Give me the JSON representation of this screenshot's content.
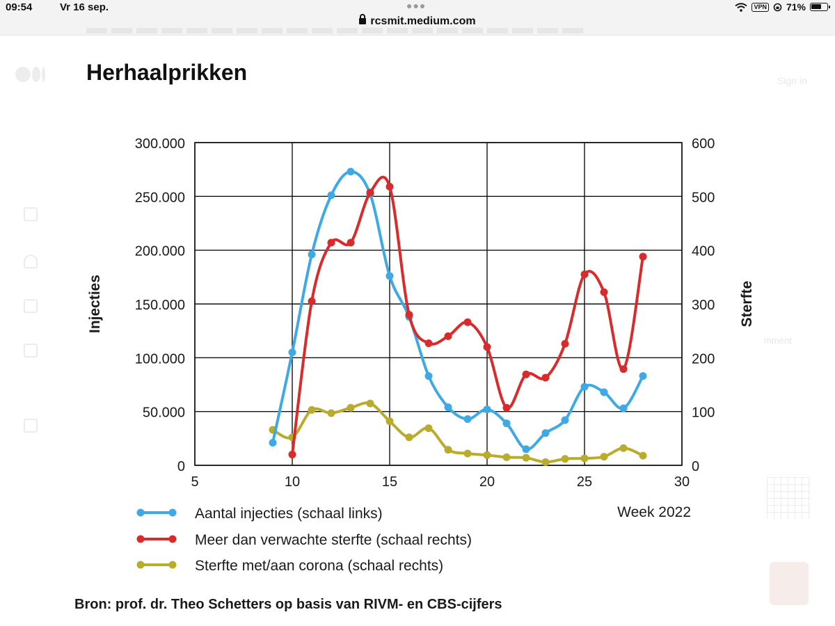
{
  "status_bar": {
    "time": "09:54",
    "date": "Vr 16 sep.",
    "url": "rcsmit.medium.com",
    "vpn": "VPN",
    "battery": "71%",
    "battery_level": 0.71
  },
  "background": {
    "signin": "Sign in",
    "comment": "mment"
  },
  "article": {
    "title": "Herhaalprikken",
    "source": "Bron: prof. dr. Theo Schetters op basis van RIVM- en CBS-cijfers"
  },
  "colors": {
    "injections": "#3fa9e6",
    "excess_mortality": "#d92b2b",
    "covid_deaths": "#b9ac2c",
    "grid": "#111111"
  },
  "chart_data": {
    "type": "line",
    "grid": true,
    "x_label": "Week 2022",
    "y_left_label": "Injecties",
    "y_right_label": "Sterfte",
    "xlim": [
      5,
      30
    ],
    "x_ticks": [
      "5",
      "10",
      "15",
      "20",
      "25",
      "30"
    ],
    "y_left_lim": [
      0,
      300000
    ],
    "y_left_ticks": [
      "0",
      "50.000",
      "100.000",
      "150.000",
      "200.000",
      "250.000",
      "300.000"
    ],
    "y_right_lim": [
      0,
      600
    ],
    "y_right_ticks": [
      "0",
      "100",
      "200",
      "300",
      "400",
      "500",
      "600"
    ],
    "series": [
      {
        "name": "Aantal injecties (schaal links)",
        "axis": "left",
        "x": [
          9,
          10,
          11,
          12,
          13,
          14,
          15,
          16,
          17,
          18,
          19,
          20,
          21,
          22,
          23,
          24,
          25,
          26,
          27,
          28
        ],
        "y": [
          21000,
          105000,
          196000,
          251000,
          273000,
          252000,
          176000,
          138000,
          83000,
          54000,
          43000,
          52000,
          39000,
          15000,
          30000,
          42000,
          73000,
          68000,
          53000,
          83000
        ]
      },
      {
        "name": "Meer dan verwachte sterfte (schaal rechts)",
        "axis": "right",
        "x": [
          10,
          11,
          12,
          13,
          14,
          15,
          16,
          17,
          18,
          19,
          20,
          21,
          22,
          23,
          24,
          25,
          26,
          27,
          28
        ],
        "y": [
          20,
          305,
          414,
          414,
          507,
          518,
          280,
          227,
          240,
          266,
          220,
          107,
          169,
          163,
          226,
          355,
          322,
          179,
          388
        ]
      },
      {
        "name": "Sterfte met/aan corona (schaal rechts)",
        "axis": "right",
        "x": [
          9,
          10,
          11,
          12,
          13,
          14,
          15,
          16,
          17,
          18,
          19,
          20,
          21,
          22,
          23,
          24,
          25,
          26,
          27,
          28
        ],
        "y": [
          66,
          52,
          103,
          97,
          107,
          115,
          82,
          52,
          69,
          29,
          22,
          19,
          15,
          14,
          6,
          12,
          13,
          16,
          32,
          18
        ]
      }
    ]
  }
}
